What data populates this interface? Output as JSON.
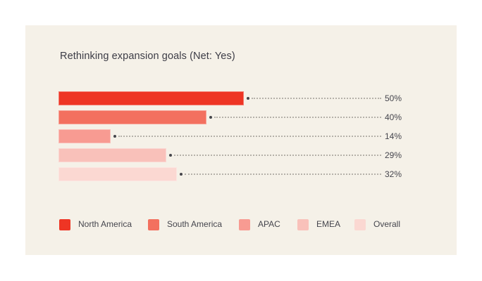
{
  "chart_data": {
    "type": "bar",
    "orientation": "horizontal",
    "title": "Rethinking expansion goals (Net: Yes)",
    "categories": [
      "North America",
      "South America",
      "APAC",
      "EMEA",
      "Overall"
    ],
    "values": [
      50,
      40,
      14,
      29,
      32
    ],
    "value_labels": [
      "50%",
      "40%",
      "14%",
      "29%",
      "32%"
    ],
    "unit": "%",
    "xlim": [
      0,
      100
    ],
    "grid": false,
    "legend_position": "bottom",
    "leader_line_style": "dotted-with-marker-dot",
    "series_colors": [
      "#ee3524",
      "#f3705f",
      "#f89b92",
      "#f9c1ba",
      "#fbd8d2"
    ]
  },
  "colors": {
    "page_background": "#ffffff",
    "card_background": "#f5f1e8",
    "title_text": "#3c3c46",
    "label_text": "#45454d",
    "leader_line": "#b5b1a9",
    "marker_dot": "#45454b"
  }
}
